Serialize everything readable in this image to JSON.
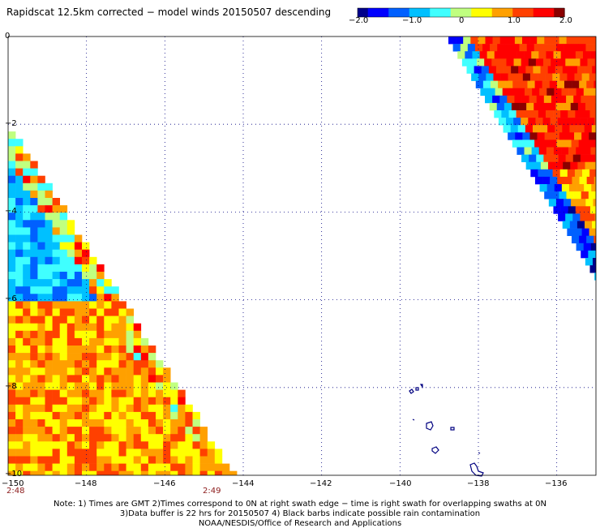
{
  "title": "Rapidscat 12.5km corrected − model winds 20150507 descending",
  "colorbar": {
    "tick_labels": [
      "−2.0",
      "−1.0",
      "0",
      "1.0",
      "2.0"
    ],
    "colors": [
      "#00008b",
      "#0000ff",
      "#0060ff",
      "#00c0ff",
      "#40ffff",
      "#c0ff80",
      "#ffff00",
      "#ffa000",
      "#ff4000",
      "#ff0000",
      "#8b0000"
    ]
  },
  "map": {
    "lon_labels": [
      "−150",
      "−148",
      "−146",
      "−144",
      "−142",
      "−140",
      "−138",
      "−136"
    ],
    "lat_labels": [
      "0",
      "−2",
      "−4",
      "−6",
      "−8",
      "−10"
    ],
    "lon_range": [
      -150,
      -135
    ],
    "lat_range": [
      -10,
      0
    ],
    "grid": "dotted",
    "swath_times": [
      "2:48",
      "2:49"
    ]
  },
  "notes": [
    "Note: 1) Times are GMT 2)Times correspond to 0N at right swath edge − time is right swath for overlapping swaths at 0N",
    "3)Data buffer is 22 hrs for 20150507 4) Black barbs indicate possible rain contamination",
    "NOAA/NESDIS/Office of Research and Applications"
  ]
}
